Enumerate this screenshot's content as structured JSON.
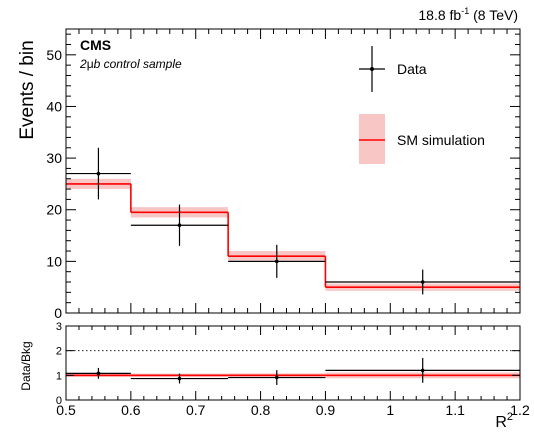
{
  "header": {
    "lumi_value": "18.8 fb",
    "lumi_exp": "-1",
    "lumi_energy": " (8 TeV)"
  },
  "labels": {
    "experiment": "CMS",
    "sample_prefix": "2",
    "sample_mu": "μ",
    "sample_suffix": "b control sample"
  },
  "legend": {
    "data": "Data",
    "sim": "SM simulation"
  },
  "colors": {
    "band": "#f9c6c6",
    "sim_line": "#ff0000",
    "data": "#000000",
    "reference_line": "#000000"
  },
  "chart_data": [
    {
      "type": "bar",
      "subtype": "step-histogram",
      "xlabel": "R",
      "xlabel_sup": "2",
      "ylabel": "Events / bin",
      "xlim": [
        0.5,
        1.2
      ],
      "ylim": [
        0,
        55
      ],
      "xticks": [
        "0.5",
        "0.6",
        "0.7",
        "0.8",
        "0.9",
        "1",
        "1.1",
        "1.2"
      ],
      "yticks": [
        "0",
        "10",
        "20",
        "30",
        "40",
        "50"
      ],
      "bin_edges": [
        0.5,
        0.6,
        0.75,
        0.9,
        1.2
      ],
      "series": [
        {
          "name": "Data",
          "values": [
            27,
            17,
            10,
            6
          ],
          "errors": [
            5,
            4,
            3.2,
            2.4
          ]
        },
        {
          "name": "SM simulation",
          "values": [
            25,
            19.5,
            11,
            5
          ],
          "band_low": [
            24,
            18.5,
            10.2,
            4.3
          ],
          "band_high": [
            26,
            20.5,
            12,
            5.7
          ]
        }
      ]
    },
    {
      "type": "line",
      "subtype": "ratio-panel",
      "ylabel": "Data/Bkg",
      "xlim": [
        0.5,
        1.2
      ],
      "ylim": [
        0,
        3
      ],
      "yticks": [
        "0",
        "1",
        "2",
        "3"
      ],
      "reference_line": 2,
      "bin_edges": [
        0.5,
        0.6,
        0.75,
        0.9,
        1.2
      ],
      "series": [
        {
          "name": "Data/Bkg",
          "values": [
            1.08,
            0.87,
            0.91,
            1.2
          ],
          "errors": [
            0.22,
            0.2,
            0.3,
            0.5
          ]
        },
        {
          "name": "SM simulation",
          "values": [
            1,
            1,
            1,
            1
          ],
          "band_low": [
            0.93,
            0.93,
            0.92,
            0.88
          ],
          "band_high": [
            1.07,
            1.07,
            1.08,
            1.12
          ]
        }
      ]
    }
  ]
}
